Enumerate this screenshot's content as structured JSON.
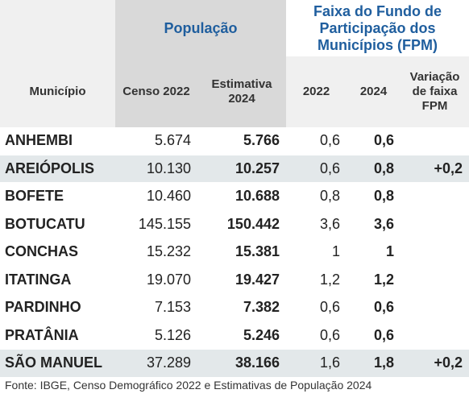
{
  "header": {
    "group_population": "População",
    "group_fpm": "Faixa do Fundo de Participação dos Municípios (FPM)",
    "columns": [
      "Município",
      "Censo 2022",
      "Estimativa 2024",
      "2022",
      "2024",
      "Variação de faixa FPM"
    ]
  },
  "table": {
    "rows": [
      [
        "ANHEMBI",
        "5.674",
        "5.766",
        "0,6",
        "0,6",
        null
      ],
      [
        "AREIÓPOLIS",
        "10.130",
        "10.257",
        "0,6",
        "0,8",
        "+0,2"
      ],
      [
        "BOFETE",
        "10.460",
        "10.688",
        "0,8",
        "0,8",
        null
      ],
      [
        "BOTUCATU",
        "145.155",
        "150.442",
        "3,6",
        "3,6",
        null
      ],
      [
        "CONCHAS",
        "15.232",
        "15.381",
        "1",
        "1",
        null
      ],
      [
        "ITATINGA",
        "19.070",
        "19.427",
        "1,2",
        "1,2",
        null
      ],
      [
        "PARDINHO",
        "7.153",
        "7.382",
        "0,6",
        "0,6",
        null
      ],
      [
        "PRATÂNIA",
        "5.126",
        "5.246",
        "0,6",
        "0,6",
        null
      ],
      [
        "SÃO MANUEL",
        "37.289",
        "38.166",
        "1,6",
        "1,8",
        "+0,2"
      ]
    ]
  },
  "footer": {
    "source": "Fonte: IBGE, Censo Demográfico 2022 e Estimativas de População 2024"
  }
}
